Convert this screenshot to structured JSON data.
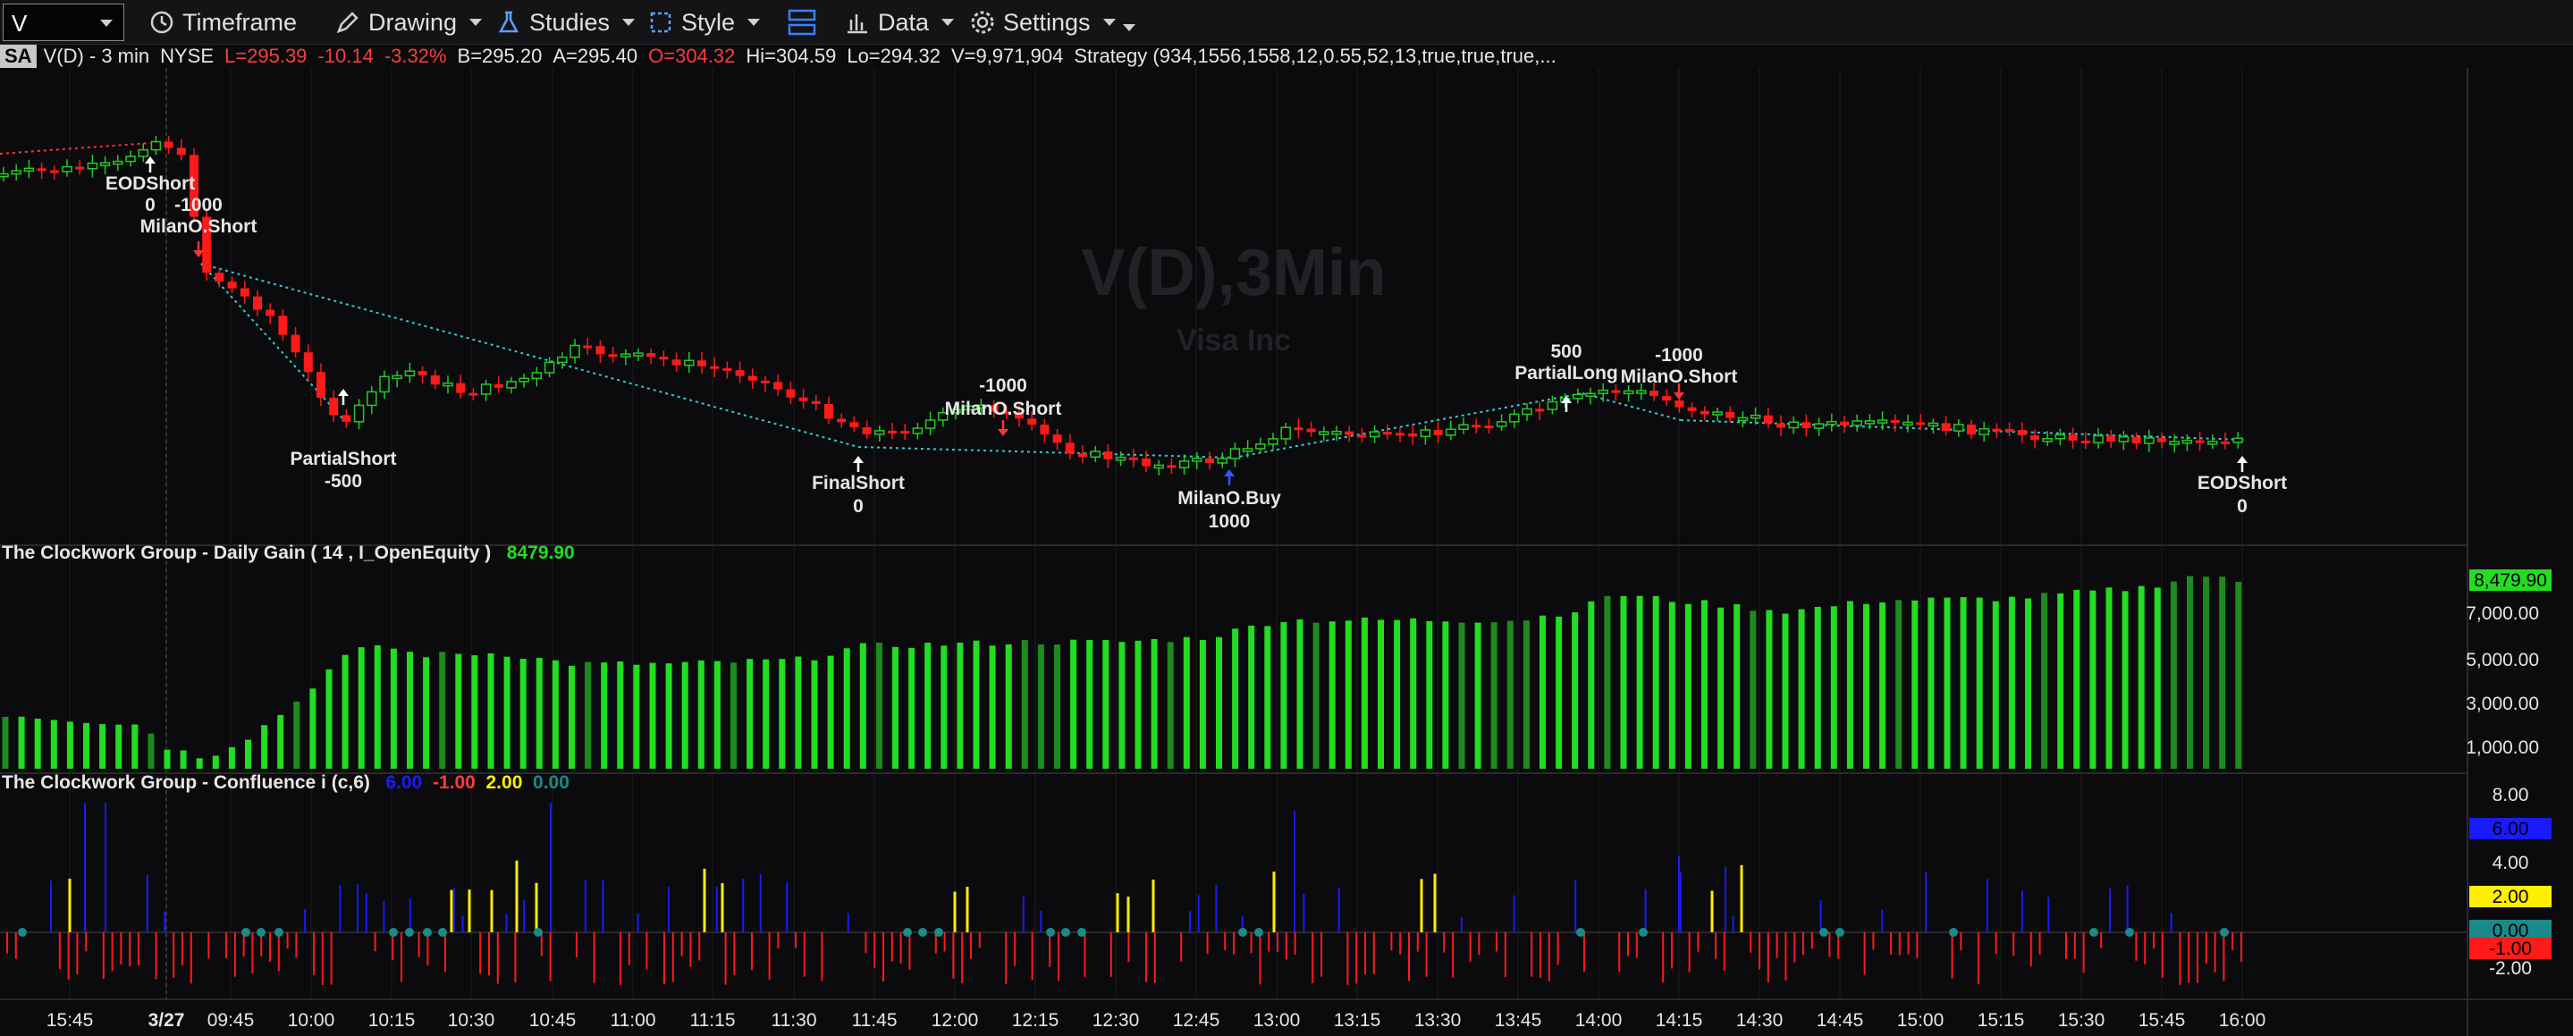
{
  "toolbar": {
    "symbol": "V",
    "timeframe_label": "Timeframe",
    "drawing_label": "Drawing",
    "studies_label": "Studies",
    "style_label": "Style",
    "data_label": "Data",
    "settings_label": "Settings"
  },
  "info": {
    "badge": "SA",
    "symbol_desc": "V(D) - 3 min",
    "exchange": "NYSE",
    "last": "L=295.39",
    "change": "-10.14",
    "change_pct": "-3.32%",
    "bid": "B=295.20",
    "ask": "A=295.40",
    "open": "O=304.32",
    "high": "Hi=304.59",
    "low": "Lo=294.32",
    "volume": "V=9,971,904",
    "strategy": "Strategy (934,1556,1558,12,0.55,52,13,true,true,true,..."
  },
  "watermark": {
    "title": "V(D),3Min",
    "subtitle": "Visa Inc"
  },
  "colors": {
    "up": "#22cc22",
    "down": "#ff1a1a",
    "background": "#0b0b0d",
    "gain_green": "#22dd22",
    "blue": "#1a1aff",
    "yellow": "#ffee00",
    "teal": "#1a8a8a"
  },
  "trade_labels": [
    {
      "top": "EODShort",
      "bottom": "0"
    },
    {
      "top": "-1000",
      "bottom": "MilanO.Short"
    },
    {
      "top": "PartialShort",
      "bottom": "-500"
    },
    {
      "top": "FinalShort",
      "bottom": "0"
    },
    {
      "top": "-1000",
      "bottom": "MilanO.Short"
    },
    {
      "top": "MilanO.Buy",
      "bottom": "1000"
    },
    {
      "top": "500",
      "bottom": "PartialLong"
    },
    {
      "top": "-1000",
      "bottom": "MilanO.Short"
    },
    {
      "top": "EODShort",
      "bottom": "0"
    }
  ],
  "gain_panel": {
    "title": "The Clockwork Group - Daily Gain ( 14 , I_OpenEquity )",
    "value": "8479.90",
    "current_badge": "8,479.90",
    "axis": [
      "7,000.00",
      "5,000.00",
      "3,000.00",
      "1,000.00"
    ]
  },
  "confluence_panel": {
    "title": "The Clockwork Group - Confluence i (c,6)",
    "v_blue": "6.00",
    "v_red": "-1.00",
    "v_yellow": "2.00",
    "v_teal": "0.00",
    "axis": [
      "8.00",
      "4.00",
      "-2.00"
    ],
    "badges": {
      "blue": "6.00",
      "yellow": "2.00",
      "teal": "0.00",
      "red": "-1.00"
    }
  },
  "time_axis": [
    "15:45",
    "3/27",
    "09:45",
    "10:00",
    "10:15",
    "10:30",
    "10:45",
    "11:00",
    "11:15",
    "11:30",
    "11:45",
    "12:00",
    "12:15",
    "12:30",
    "12:45",
    "13:00",
    "13:15",
    "13:30",
    "13:45",
    "14:00",
    "14:15",
    "14:30",
    "14:45",
    "15:00",
    "15:15",
    "15:30",
    "15:45",
    "16:00"
  ]
}
